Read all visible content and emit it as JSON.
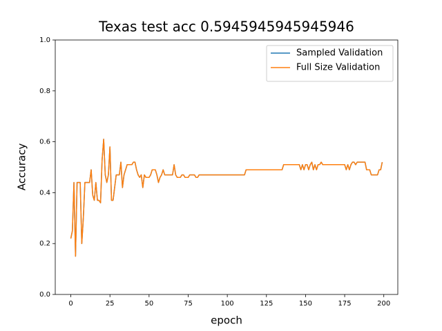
{
  "chart_data": {
    "type": "line",
    "title": "Texas test acc 0.5945945945945946",
    "xlabel": "epoch",
    "ylabel": "Accuracy",
    "x": [
      0,
      1,
      2,
      3,
      4,
      5,
      6,
      7,
      8,
      9,
      10,
      11,
      12,
      13,
      14,
      15,
      16,
      17,
      18,
      19,
      20,
      21,
      22,
      23,
      24,
      25,
      26,
      27,
      28,
      29,
      30,
      31,
      32,
      33,
      34,
      35,
      36,
      37,
      38,
      39,
      40,
      41,
      42,
      43,
      44,
      45,
      46,
      47,
      48,
      49,
      50,
      51,
      52,
      53,
      54,
      55,
      56,
      57,
      58,
      59,
      60,
      61,
      62,
      63,
      64,
      65,
      66,
      67,
      68,
      69,
      70,
      71,
      72,
      73,
      74,
      75,
      76,
      77,
      78,
      79,
      80,
      81,
      82,
      83,
      84,
      85,
      86,
      87,
      88,
      89,
      90,
      91,
      92,
      93,
      94,
      95,
      96,
      97,
      98,
      99,
      100,
      101,
      102,
      103,
      104,
      105,
      106,
      107,
      108,
      109,
      110,
      111,
      112,
      113,
      114,
      115,
      116,
      117,
      118,
      119,
      120,
      121,
      122,
      123,
      124,
      125,
      126,
      127,
      128,
      129,
      130,
      131,
      132,
      133,
      134,
      135,
      136,
      137,
      138,
      139,
      140,
      141,
      142,
      143,
      144,
      145,
      146,
      147,
      148,
      149,
      150,
      151,
      152,
      153,
      154,
      155,
      156,
      157,
      158,
      159,
      160,
      161,
      162,
      163,
      164,
      165,
      166,
      167,
      168,
      169,
      170,
      171,
      172,
      173,
      174,
      175,
      176,
      177,
      178,
      179,
      180,
      181,
      182,
      183,
      184,
      185,
      186,
      187,
      188,
      189,
      190,
      191,
      192,
      193,
      194,
      195,
      196,
      197,
      198,
      199
    ],
    "series": [
      {
        "name": "Sampled Validation",
        "color": "#1f77b4",
        "values": [
          0.22,
          0.25,
          0.44,
          0.15,
          0.44,
          0.44,
          0.44,
          0.2,
          0.3,
          0.44,
          0.44,
          0.44,
          0.44,
          0.49,
          0.39,
          0.37,
          0.44,
          0.37,
          0.37,
          0.36,
          0.53,
          0.61,
          0.47,
          0.44,
          0.47,
          0.58,
          0.37,
          0.37,
          0.42,
          0.47,
          0.47,
          0.47,
          0.52,
          0.42,
          0.47,
          0.49,
          0.51,
          0.51,
          0.51,
          0.51,
          0.52,
          0.52,
          0.49,
          0.47,
          0.46,
          0.47,
          0.42,
          0.47,
          0.46,
          0.46,
          0.46,
          0.47,
          0.49,
          0.49,
          0.49,
          0.47,
          0.44,
          0.46,
          0.47,
          0.49,
          0.47,
          0.47,
          0.47,
          0.47,
          0.47,
          0.47,
          0.51,
          0.47,
          0.46,
          0.46,
          0.46,
          0.47,
          0.47,
          0.46,
          0.46,
          0.46,
          0.47,
          0.47,
          0.47,
          0.47,
          0.46,
          0.46,
          0.47,
          0.47,
          0.47,
          0.47,
          0.47,
          0.47,
          0.47,
          0.47,
          0.47,
          0.47,
          0.47,
          0.47,
          0.47,
          0.47,
          0.47,
          0.47,
          0.47,
          0.47,
          0.47,
          0.47,
          0.47,
          0.47,
          0.47,
          0.47,
          0.47,
          0.47,
          0.47,
          0.47,
          0.47,
          0.47,
          0.49,
          0.49,
          0.49,
          0.49,
          0.49,
          0.49,
          0.49,
          0.49,
          0.49,
          0.49,
          0.49,
          0.49,
          0.49,
          0.49,
          0.49,
          0.49,
          0.49,
          0.49,
          0.49,
          0.49,
          0.49,
          0.49,
          0.49,
          0.49,
          0.51,
          0.51,
          0.51,
          0.51,
          0.51,
          0.51,
          0.51,
          0.51,
          0.51,
          0.51,
          0.51,
          0.49,
          0.51,
          0.49,
          0.51,
          0.51,
          0.49,
          0.51,
          0.52,
          0.49,
          0.51,
          0.49,
          0.51,
          0.51,
          0.52,
          0.51,
          0.51,
          0.51,
          0.51,
          0.51,
          0.51,
          0.51,
          0.51,
          0.51,
          0.51,
          0.51,
          0.51,
          0.51,
          0.51,
          0.51,
          0.49,
          0.51,
          0.49,
          0.51,
          0.52,
          0.52,
          0.51,
          0.52,
          0.52,
          0.52,
          0.52,
          0.52,
          0.52,
          0.49,
          0.49,
          0.49,
          0.47,
          0.47,
          0.47,
          0.47,
          0.47,
          0.49,
          0.49,
          0.52
        ]
      },
      {
        "name": "Full Size Validation",
        "color": "#ff7f0e",
        "values": [
          0.22,
          0.25,
          0.44,
          0.15,
          0.44,
          0.44,
          0.44,
          0.2,
          0.3,
          0.44,
          0.44,
          0.44,
          0.44,
          0.49,
          0.39,
          0.37,
          0.44,
          0.37,
          0.37,
          0.36,
          0.53,
          0.61,
          0.47,
          0.44,
          0.47,
          0.58,
          0.37,
          0.37,
          0.42,
          0.47,
          0.47,
          0.47,
          0.52,
          0.42,
          0.47,
          0.49,
          0.51,
          0.51,
          0.51,
          0.51,
          0.52,
          0.52,
          0.49,
          0.47,
          0.46,
          0.47,
          0.42,
          0.47,
          0.46,
          0.46,
          0.46,
          0.47,
          0.49,
          0.49,
          0.49,
          0.47,
          0.44,
          0.46,
          0.47,
          0.49,
          0.47,
          0.47,
          0.47,
          0.47,
          0.47,
          0.47,
          0.51,
          0.47,
          0.46,
          0.46,
          0.46,
          0.47,
          0.47,
          0.46,
          0.46,
          0.46,
          0.47,
          0.47,
          0.47,
          0.47,
          0.46,
          0.46,
          0.47,
          0.47,
          0.47,
          0.47,
          0.47,
          0.47,
          0.47,
          0.47,
          0.47,
          0.47,
          0.47,
          0.47,
          0.47,
          0.47,
          0.47,
          0.47,
          0.47,
          0.47,
          0.47,
          0.47,
          0.47,
          0.47,
          0.47,
          0.47,
          0.47,
          0.47,
          0.47,
          0.47,
          0.47,
          0.47,
          0.49,
          0.49,
          0.49,
          0.49,
          0.49,
          0.49,
          0.49,
          0.49,
          0.49,
          0.49,
          0.49,
          0.49,
          0.49,
          0.49,
          0.49,
          0.49,
          0.49,
          0.49,
          0.49,
          0.49,
          0.49,
          0.49,
          0.49,
          0.49,
          0.51,
          0.51,
          0.51,
          0.51,
          0.51,
          0.51,
          0.51,
          0.51,
          0.51,
          0.51,
          0.51,
          0.49,
          0.51,
          0.49,
          0.51,
          0.51,
          0.49,
          0.51,
          0.52,
          0.49,
          0.51,
          0.49,
          0.51,
          0.51,
          0.52,
          0.51,
          0.51,
          0.51,
          0.51,
          0.51,
          0.51,
          0.51,
          0.51,
          0.51,
          0.51,
          0.51,
          0.51,
          0.51,
          0.51,
          0.51,
          0.49,
          0.51,
          0.49,
          0.51,
          0.52,
          0.52,
          0.51,
          0.52,
          0.52,
          0.52,
          0.52,
          0.52,
          0.52,
          0.49,
          0.49,
          0.49,
          0.47,
          0.47,
          0.47,
          0.47,
          0.47,
          0.49,
          0.49,
          0.52
        ]
      }
    ],
    "xlim": [
      -9.95,
      208.95
    ],
    "xticks": [
      0,
      25,
      50,
      75,
      100,
      125,
      150,
      175,
      200
    ],
    "ylim": [
      0,
      1
    ],
    "yticks": [
      {
        "value": 0,
        "label": "0.0"
      },
      0.2,
      0.4,
      0.6,
      0.8,
      {
        "value": 1,
        "label": "1.0"
      }
    ],
    "legend": "upper right"
  }
}
